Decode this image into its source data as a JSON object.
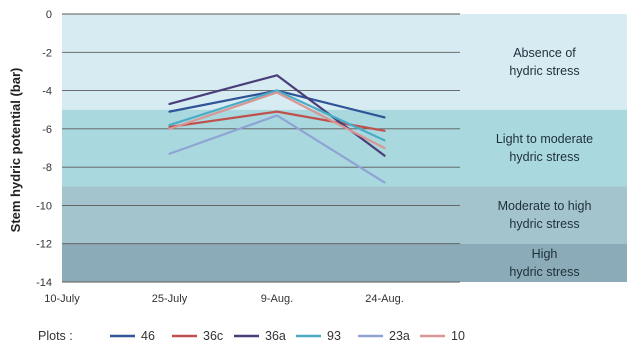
{
  "chart_data": {
    "type": "line",
    "ylabel": "Stem hydric potential (bar)",
    "xlabel": "",
    "ylim": [
      -14,
      0
    ],
    "y_ticks": [
      0,
      -2,
      -4,
      -6,
      -8,
      -10,
      -12,
      -14
    ],
    "x_ticks": [
      "10-July",
      "25-July",
      "9-Aug.",
      "24-Aug."
    ],
    "x_points": [
      "25-July",
      "9-Aug.",
      "24-Aug."
    ],
    "grid": true,
    "bands": [
      {
        "label_lines": [
          "Absence of",
          "hydric stress"
        ],
        "from": 0,
        "to": -5,
        "color": "#d7ecf2"
      },
      {
        "label_lines": [
          "Light to moderate",
          "hydric stress"
        ],
        "from": -5,
        "to": -9,
        "color": "#a9d9de"
      },
      {
        "label_lines": [
          "Moderate to high",
          "hydric stress"
        ],
        "from": -9,
        "to": -12,
        "color": "#a3c4cd"
      },
      {
        "label_lines": [
          "High",
          "hydric stress"
        ],
        "from": -12,
        "to": -14,
        "color": "#8aabb7"
      }
    ],
    "legend_title": "Plots :",
    "legend_position": "bottom",
    "series": [
      {
        "name": "46",
        "color": "#2f5597",
        "values": [
          -5.1,
          -4.0,
          -5.4
        ]
      },
      {
        "name": "36c",
        "color": "#c0504d",
        "values": [
          -5.9,
          -5.1,
          -6.1
        ]
      },
      {
        "name": "36a",
        "color": "#4b3d7a",
        "values": [
          -4.7,
          -3.2,
          -7.4
        ]
      },
      {
        "name": "93",
        "color": "#4bacc6",
        "values": [
          -5.8,
          -4.0,
          -6.6
        ]
      },
      {
        "name": "23a",
        "color": "#8fa4d4",
        "values": [
          -7.3,
          -5.3,
          -8.8
        ]
      },
      {
        "name": "10",
        "color": "#d99694",
        "values": [
          -6.0,
          -4.1,
          -7.0
        ]
      }
    ]
  }
}
